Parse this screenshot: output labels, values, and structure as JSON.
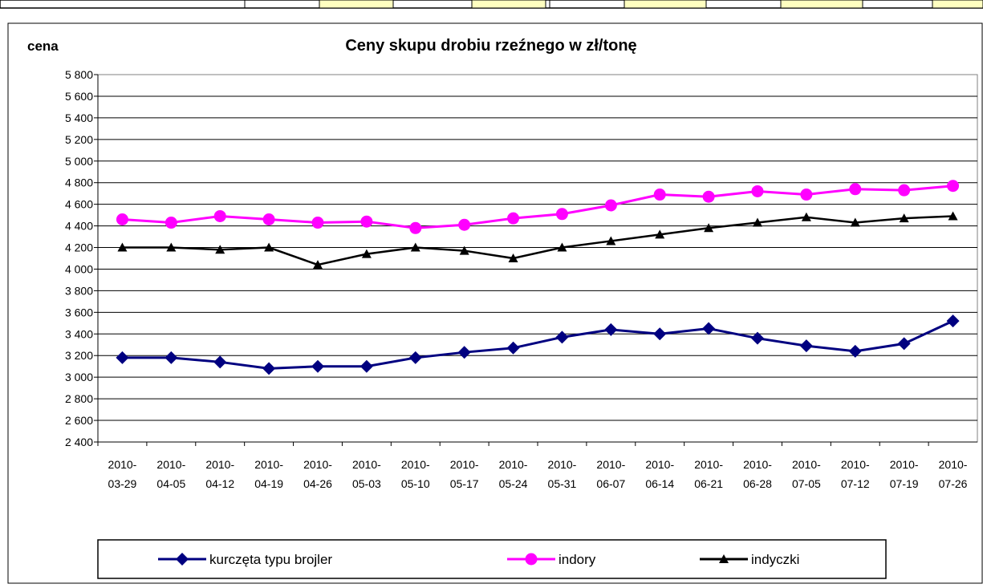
{
  "chart_data": {
    "type": "line",
    "title": "Ceny skupu drobiu rzeźnego w zł/tonę",
    "y_label": "cena",
    "categories": [
      "2010-03-29",
      "2010-04-05",
      "2010-04-12",
      "2010-04-19",
      "2010-04-26",
      "2010-05-03",
      "2010-05-10",
      "2010-05-17",
      "2010-05-24",
      "2010-05-31",
      "2010-06-07",
      "2010-06-14",
      "2010-06-21",
      "2010-06-28",
      "2010-07-05",
      "2010-07-12",
      "2010-07-19",
      "2010-07-26"
    ],
    "series": [
      {
        "name": "kurczęta typu brojler",
        "color": "#000080",
        "marker": "diamond",
        "values": [
          3180,
          3180,
          3140,
          3080,
          3100,
          3100,
          3180,
          3230,
          3270,
          3370,
          3440,
          3400,
          3450,
          3360,
          3290,
          3240,
          3310,
          3520
        ]
      },
      {
        "name": "indory",
        "color": "#ff00ff",
        "marker": "circle",
        "values": [
          4460,
          4430,
          4490,
          4460,
          4430,
          4440,
          4380,
          4410,
          4470,
          4510,
          4590,
          4690,
          4670,
          4720,
          4690,
          4740,
          4730,
          4770
        ]
      },
      {
        "name": "indyczki",
        "color": "#000000",
        "marker": "triangle",
        "values": [
          4200,
          4200,
          4180,
          4200,
          4040,
          4140,
          4200,
          4170,
          4100,
          4200,
          4260,
          4320,
          4380,
          4430,
          4480,
          4430,
          4470,
          4490
        ]
      }
    ],
    "ylim": [
      2400,
      5800
    ],
    "yticks": [
      {
        "value": 2400,
        "label": "2 400"
      },
      {
        "value": 2600,
        "label": "2 600"
      },
      {
        "value": 2800,
        "label": "2 800"
      },
      {
        "value": 3000,
        "label": "3 000"
      },
      {
        "value": 3200,
        "label": "3 200"
      },
      {
        "value": 3400,
        "label": "3 400"
      },
      {
        "value": 3600,
        "label": "3 600"
      },
      {
        "value": 3800,
        "label": "3 800"
      },
      {
        "value": 4000,
        "label": "4 000"
      },
      {
        "value": 4200,
        "label": "4 200"
      },
      {
        "value": 4400,
        "label": "4 400"
      },
      {
        "value": 4600,
        "label": "4 600"
      },
      {
        "value": 4800,
        "label": "4 800"
      },
      {
        "value": 5000,
        "label": "5 000"
      },
      {
        "value": 5200,
        "label": "5 200"
      },
      {
        "value": 5400,
        "label": "5 400"
      },
      {
        "value": 5600,
        "label": "5 600"
      },
      {
        "value": 5800,
        "label": "5 800"
      }
    ],
    "grid": true,
    "legend": "bottom"
  }
}
